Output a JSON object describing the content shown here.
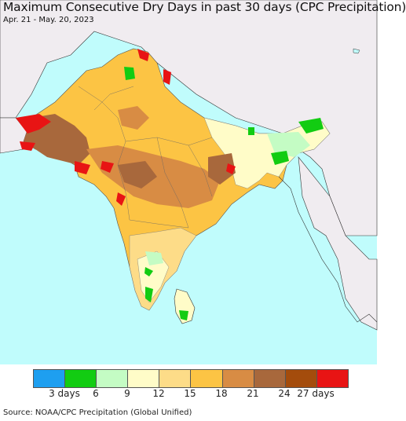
{
  "title": "Maximum Consecutive Dry Days in past 30 days (CPC Precipitation)",
  "subtitle": "Apr. 21 - May. 20, 2023",
  "source": "Source: NOAA/CPC Precipitation (Global Unified)",
  "legend": {
    "colors": [
      "#1e9ff0",
      "#12cc12",
      "#c4fcc4",
      "#fffcc8",
      "#fddc88",
      "#fcc444",
      "#d88c44",
      "#a8683c",
      "#a44c0c",
      "#e81414"
    ],
    "ticks": [
      "3 days",
      "6",
      "9",
      "12",
      "15",
      "18",
      "21",
      "24",
      "27 days"
    ]
  },
  "colors": {
    "ocean": "#c0fcfc",
    "outside": "#f0ecf0",
    "border": "#333333"
  }
}
